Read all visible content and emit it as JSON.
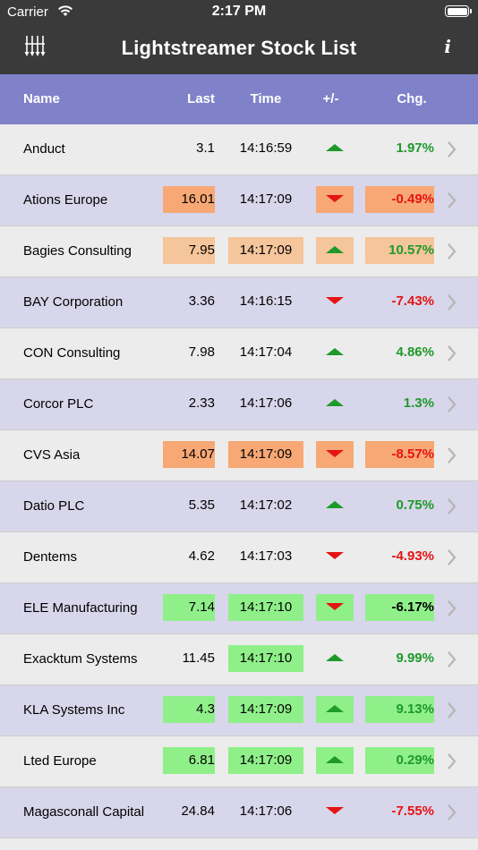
{
  "status": {
    "carrier": "Carrier",
    "time": "2:17 PM"
  },
  "nav": {
    "title": "Lightstreamer Stock List",
    "info_label": "i"
  },
  "headers": {
    "name": "Name",
    "last": "Last",
    "time": "Time",
    "dir": "+/-",
    "chg": "Chg."
  },
  "rows": [
    {
      "name": "Anduct",
      "last": "3.1",
      "time": "14:16:59",
      "dir": "up",
      "chg": "1.97%",
      "chg_sign": "pos",
      "hl": [
        "",
        "",
        "",
        ""
      ]
    },
    {
      "name": "Ations Europe",
      "last": "16.01",
      "time": "14:17:09",
      "dir": "down",
      "chg": "-0.49%",
      "chg_sign": "neg",
      "hl": [
        "orange",
        "",
        "orange",
        "orange"
      ]
    },
    {
      "name": "Bagies Consulting",
      "last": "7.95",
      "time": "14:17:09",
      "dir": "up",
      "chg": "10.57%",
      "chg_sign": "pos",
      "hl": [
        "peach",
        "peach",
        "peach",
        "peach"
      ]
    },
    {
      "name": "BAY Corporation",
      "last": "3.36",
      "time": "14:16:15",
      "dir": "down",
      "chg": "-7.43%",
      "chg_sign": "neg",
      "hl": [
        "",
        "",
        "",
        ""
      ]
    },
    {
      "name": "CON Consulting",
      "last": "7.98",
      "time": "14:17:04",
      "dir": "up",
      "chg": "4.86%",
      "chg_sign": "pos",
      "hl": [
        "",
        "",
        "",
        ""
      ]
    },
    {
      "name": "Corcor PLC",
      "last": "2.33",
      "time": "14:17:06",
      "dir": "up",
      "chg": "1.3%",
      "chg_sign": "pos",
      "hl": [
        "",
        "",
        "",
        ""
      ]
    },
    {
      "name": "CVS Asia",
      "last": "14.07",
      "time": "14:17:09",
      "dir": "down",
      "chg": "-8.57%",
      "chg_sign": "neg",
      "hl": [
        "orange",
        "orange",
        "orange",
        "orange"
      ]
    },
    {
      "name": "Datio PLC",
      "last": "5.35",
      "time": "14:17:02",
      "dir": "up",
      "chg": "0.75%",
      "chg_sign": "pos",
      "hl": [
        "",
        "",
        "",
        ""
      ]
    },
    {
      "name": "Dentems",
      "last": "4.62",
      "time": "14:17:03",
      "dir": "down",
      "chg": "-4.93%",
      "chg_sign": "neg",
      "hl": [
        "",
        "",
        "",
        ""
      ]
    },
    {
      "name": "ELE Manufacturing",
      "last": "7.14",
      "time": "14:17:10",
      "dir": "down",
      "chg": "-6.17%",
      "chg_sign": "neu",
      "hl": [
        "green",
        "green",
        "green",
        "green"
      ]
    },
    {
      "name": "Exacktum Systems",
      "last": "11.45",
      "time": "14:17:10",
      "dir": "up",
      "chg": "9.99%",
      "chg_sign": "pos",
      "hl": [
        "",
        "green",
        "",
        ""
      ]
    },
    {
      "name": "KLA Systems Inc",
      "last": "4.3",
      "time": "14:17:09",
      "dir": "up",
      "chg": "9.13%",
      "chg_sign": "pos",
      "hl": [
        "green",
        "green",
        "green",
        "green"
      ]
    },
    {
      "name": "Lted Europe",
      "last": "6.81",
      "time": "14:17:09",
      "dir": "up",
      "chg": "0.29%",
      "chg_sign": "pos",
      "hl": [
        "green",
        "green",
        "green",
        "green"
      ]
    },
    {
      "name": "Magasconall Capital",
      "last": "24.84",
      "time": "14:17:06",
      "dir": "down",
      "chg": "-7.55%",
      "chg_sign": "neg",
      "hl": [
        "",
        "",
        "",
        ""
      ]
    }
  ],
  "colors": {
    "nav_bg": "#3a3a3a",
    "header_bg": "#7f82c8",
    "row_odd": "#ececec",
    "row_even": "#d8d6ea",
    "up_arrow": "#1d9a2a",
    "down_arrow": "#e51414",
    "hl_orange": "#f7a875",
    "hl_peach": "#f5c59b",
    "hl_green": "#8ff08a"
  },
  "icons": {
    "logo": "lightstreamer-logo-icon",
    "info": "info-icon",
    "chevron": "chevron-right-icon",
    "wifi": "wifi-icon",
    "battery": "battery-icon"
  }
}
